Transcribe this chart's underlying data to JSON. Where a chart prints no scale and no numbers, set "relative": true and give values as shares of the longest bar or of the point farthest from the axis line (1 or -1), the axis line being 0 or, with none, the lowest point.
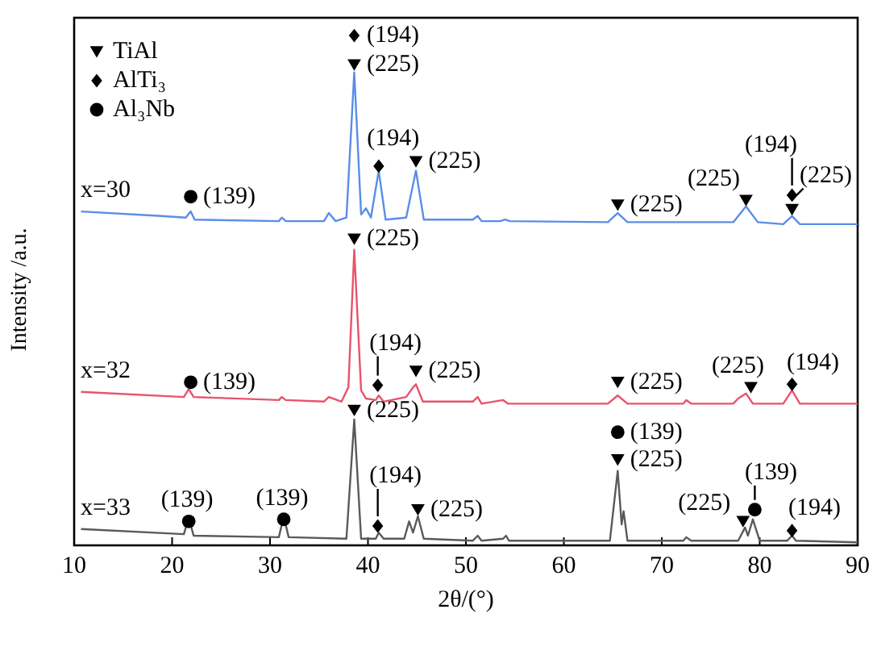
{
  "chart_data": {
    "type": "line",
    "relative": true,
    "xlabel": "2θ/(°)",
    "ylabel": "Intensity /a.u.",
    "xlim": [
      10,
      90
    ],
    "xticks": [
      10,
      20,
      30,
      40,
      50,
      60,
      70,
      80,
      90
    ],
    "legend": "top left",
    "series": [
      {
        "name": "x=30",
        "color": "#5a8de8",
        "x": [
          10.7,
          18.9,
          21.4,
          21.9,
          22.3,
          30.9,
          31.2,
          31.6,
          35.5,
          36.0,
          36.7,
          37.8,
          38.6,
          39.3,
          39.8,
          40.3,
          41.1,
          41.8,
          43.9,
          44.9,
          45.7,
          50.7,
          51.2,
          51.6,
          53.5,
          54.0,
          54.5,
          64.5,
          65.5,
          66.5,
          77.3,
          78.6,
          79.8,
          82.4,
          83.3,
          84.1,
          90.0
        ],
        "values": [
          0.655,
          0.646,
          0.643,
          0.655,
          0.639,
          0.636,
          0.643,
          0.636,
          0.636,
          0.652,
          0.636,
          0.643,
          0.928,
          0.649,
          0.661,
          0.643,
          0.735,
          0.639,
          0.643,
          0.735,
          0.639,
          0.639,
          0.646,
          0.636,
          0.636,
          0.639,
          0.636,
          0.634,
          0.652,
          0.634,
          0.634,
          0.665,
          0.634,
          0.63,
          0.646,
          0.63,
          0.63
        ]
      },
      {
        "name": "x=32",
        "color": "#e8536b",
        "x": [
          10.7,
          21.2,
          21.7,
          22.2,
          30.9,
          31.2,
          31.6,
          35.5,
          36.0,
          37.3,
          38.0,
          38.6,
          39.3,
          39.8,
          40.8,
          41.1,
          41.6,
          43.9,
          44.6,
          44.9,
          45.6,
          50.7,
          51.2,
          51.6,
          53.8,
          54.3,
          64.5,
          65.5,
          66.5,
          72.2,
          72.5,
          73.0,
          77.3,
          77.8,
          78.6,
          79.3,
          82.4,
          83.3,
          84.1,
          90.0
        ],
        "values": [
          0.301,
          0.291,
          0.307,
          0.291,
          0.285,
          0.291,
          0.285,
          0.282,
          0.291,
          0.282,
          0.31,
          0.58,
          0.304,
          0.288,
          0.285,
          0.294,
          0.282,
          0.291,
          0.31,
          0.316,
          0.282,
          0.282,
          0.291,
          0.278,
          0.285,
          0.278,
          0.278,
          0.294,
          0.278,
          0.278,
          0.285,
          0.278,
          0.278,
          0.288,
          0.298,
          0.278,
          0.278,
          0.304,
          0.278,
          0.278
        ]
      },
      {
        "name": "x=33",
        "color": "#5a5a5a",
        "x": [
          10.7,
          21.2,
          21.7,
          22.2,
          30.9,
          31.4,
          31.9,
          37.8,
          38.6,
          39.3,
          40.8,
          41.1,
          41.6,
          43.7,
          44.2,
          44.6,
          45.1,
          45.7,
          50.7,
          51.2,
          51.6,
          53.8,
          54.1,
          54.4,
          64.7,
          65.5,
          65.9,
          66.1,
          66.5,
          72.2,
          72.5,
          73.0,
          77.8,
          78.5,
          78.8,
          79.3,
          80.0,
          82.8,
          83.3,
          83.7,
          90.0
        ],
        "values": [
          0.032,
          0.022,
          0.054,
          0.019,
          0.016,
          0.057,
          0.016,
          0.013,
          0.247,
          0.013,
          0.013,
          0.025,
          0.013,
          0.013,
          0.047,
          0.025,
          0.057,
          0.013,
          0.009,
          0.019,
          0.009,
          0.013,
          0.019,
          0.009,
          0.009,
          0.146,
          0.041,
          0.067,
          0.009,
          0.009,
          0.016,
          0.009,
          0.009,
          0.035,
          0.019,
          0.051,
          0.009,
          0.009,
          0.019,
          0.009,
          0.006
        ]
      },
      {
        "name": "TiAl",
        "type": "scatter",
        "marker": "triangle",
        "color": "#000000",
        "x": [
          38.6,
          44.9,
          65.5,
          78.6,
          83.3,
          38.6,
          44.9,
          65.5,
          79.1,
          38.6,
          45.1,
          65.5,
          78.3
        ],
        "values": [
          0.943,
          0.753,
          0.668,
          0.677,
          0.659,
          0.601,
          0.342,
          0.32,
          0.31,
          0.265,
          0.07,
          0.168,
          0.047
        ]
      },
      {
        "name": "AlTi₃",
        "type": "scatter",
        "marker": "diamond",
        "color": "#000000",
        "x": [
          38.6,
          41.1,
          83.3,
          41.0,
          83.3,
          41.0,
          83.3
        ],
        "values": [
          1.0,
          0.744,
          0.687,
          0.314,
          0.316,
          0.038,
          0.029
        ]
      },
      {
        "name": "Al₃Nb",
        "type": "scatter",
        "marker": "circle",
        "color": "#000000",
        "x": [
          21.9,
          21.9,
          21.7,
          31.4,
          65.5,
          79.5
        ],
        "values": [
          0.684,
          0.32,
          0.047,
          0.051,
          0.222,
          0.07
        ]
      }
    ],
    "annotations": [
      {
        "text": "(139)",
        "x": 21.9,
        "y": 0.684
      },
      {
        "text": "(194)",
        "x": 38.6,
        "y": 1.0
      },
      {
        "text": "(225)",
        "x": 38.6,
        "y": 0.943
      },
      {
        "text": "(194)",
        "x": 41.1,
        "y": 0.744
      },
      {
        "text": "(225)",
        "x": 44.9,
        "y": 0.753
      },
      {
        "text": "(225)",
        "x": 65.5,
        "y": 0.668
      },
      {
        "text": "(225)",
        "x": 78.6,
        "y": 0.677
      },
      {
        "text": "(194)",
        "x": 83.3,
        "y": 0.687
      },
      {
        "text": "(225)",
        "x": 83.3,
        "y": 0.659
      },
      {
        "text": "(225)",
        "x": 38.6,
        "y": 0.601
      },
      {
        "text": "(139)",
        "x": 21.9,
        "y": 0.32
      },
      {
        "text": "(194)",
        "x": 41.0,
        "y": 0.314
      },
      {
        "text": "(225)",
        "x": 44.9,
        "y": 0.342
      },
      {
        "text": "(225)",
        "x": 65.5,
        "y": 0.32
      },
      {
        "text": "(225)",
        "x": 79.1,
        "y": 0.31
      },
      {
        "text": "(194)",
        "x": 83.3,
        "y": 0.316
      },
      {
        "text": "(139)",
        "x": 21.7,
        "y": 0.047
      },
      {
        "text": "(139)",
        "x": 31.4,
        "y": 0.051
      },
      {
        "text": "(225)",
        "x": 38.6,
        "y": 0.265
      },
      {
        "text": "(194)",
        "x": 41.0,
        "y": 0.038
      },
      {
        "text": "(225)",
        "x": 45.1,
        "y": 0.07
      },
      {
        "text": "(139)",
        "x": 65.5,
        "y": 0.222
      },
      {
        "text": "(225)",
        "x": 65.5,
        "y": 0.168
      },
      {
        "text": "(225)",
        "x": 78.3,
        "y": 0.047
      },
      {
        "text": "(139)",
        "x": 79.5,
        "y": 0.07
      },
      {
        "text": "(194)",
        "x": 83.3,
        "y": 0.029
      }
    ]
  }
}
